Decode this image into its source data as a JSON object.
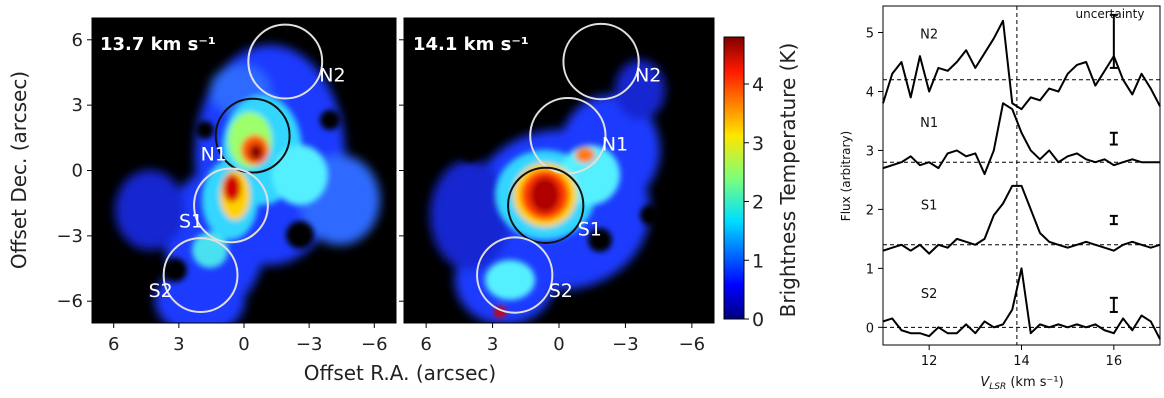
{
  "chart_data": [
    {
      "type": "heatmap",
      "panels": [
        {
          "label": "13.7 km s⁻¹",
          "circles": [
            {
              "name": "N2",
              "ra": -1.9,
              "dec": 5.0,
              "radius": 1.7,
              "color": "#e0e0e0"
            },
            {
              "name": "N1",
              "ra": -0.4,
              "dec": 1.6,
              "radius": 1.7,
              "color": "#111111"
            },
            {
              "name": "S1",
              "ra": 0.6,
              "dec": -1.6,
              "radius": 1.7,
              "color": "#e0e0e0"
            },
            {
              "name": "S2",
              "ra": 2.0,
              "dec": -4.8,
              "radius": 1.7,
              "color": "#e0e0e0"
            }
          ]
        },
        {
          "label": "14.1 km s⁻¹",
          "circles": [
            {
              "name": "N2",
              "ra": -1.9,
              "dec": 5.0,
              "radius": 1.7,
              "color": "#e0e0e0"
            },
            {
              "name": "N1",
              "ra": -0.4,
              "dec": 1.6,
              "radius": 1.7,
              "color": "#e0e0e0"
            },
            {
              "name": "S1",
              "ra": 0.6,
              "dec": -1.6,
              "radius": 1.7,
              "color": "#111111"
            },
            {
              "name": "S2",
              "ra": 2.0,
              "dec": -4.8,
              "radius": 1.7,
              "color": "#e0e0e0"
            }
          ]
        }
      ],
      "xlabel": "Offset R.A. (arcsec)",
      "ylabel": "Offset Dec. (arcsec)",
      "xlim": [
        7,
        -7
      ],
      "ylim": [
        -7,
        7
      ],
      "xticks": [
        6,
        3,
        0,
        -3,
        -6
      ],
      "yticks": [
        6,
        3,
        0,
        -3,
        -6
      ],
      "xtick_labels": [
        "6",
        "3",
        "0",
        "−3",
        "−6"
      ],
      "ytick_labels": [
        "6",
        "3",
        "0",
        "−3",
        "−6"
      ],
      "colorbar": {
        "label": "Brightness Temperature (K)",
        "range": [
          0,
          4.8
        ],
        "ticks": [
          0,
          1,
          2,
          3,
          4
        ],
        "tick_labels": [
          "0",
          "1",
          "2",
          "3",
          "4"
        ],
        "colormap": "jet"
      }
    },
    {
      "type": "line",
      "xlabel": "V",
      "xlabel_sub": "LSR",
      "xlabel_unit": " (km s⁻¹)",
      "ylabel": "Flux (arbitrary)",
      "xlim": [
        11,
        17
      ],
      "ylim": [
        -0.3,
        5.45
      ],
      "xticks": [
        12,
        14,
        16
      ],
      "yticks": [
        0,
        1,
        2,
        3,
        4,
        5
      ],
      "vline": 13.9,
      "annotation": "uncertainty",
      "x": [
        11.0,
        11.2,
        11.4,
        11.6,
        11.8,
        12.0,
        12.2,
        12.4,
        12.6,
        12.8,
        13.0,
        13.2,
        13.4,
        13.6,
        13.8,
        14.0,
        14.2,
        14.4,
        14.6,
        14.8,
        15.0,
        15.2,
        15.4,
        15.6,
        15.8,
        16.0,
        16.2,
        16.4,
        16.6,
        16.8,
        17.0
      ],
      "series": [
        {
          "name": "N2",
          "baseline": 4.2,
          "error_x": 16.0,
          "error_half": 0.45,
          "label_x": 12.0,
          "label_y": 4.9,
          "values": [
            3.8,
            4.3,
            4.5,
            3.9,
            4.6,
            4.0,
            4.4,
            4.35,
            4.5,
            4.7,
            4.4,
            4.65,
            4.9,
            5.2,
            3.8,
            3.7,
            3.9,
            3.85,
            4.05,
            4.0,
            4.3,
            4.45,
            4.5,
            4.1,
            4.35,
            4.6,
            4.2,
            3.95,
            4.3,
            4.05,
            3.75
          ]
        },
        {
          "name": "N1",
          "baseline": 2.8,
          "error_x": 16.0,
          "error_half": 0.1,
          "label_x": 12.0,
          "label_y": 3.4,
          "values": [
            2.7,
            2.75,
            2.8,
            2.9,
            2.75,
            2.8,
            2.7,
            2.95,
            3.0,
            2.9,
            2.95,
            2.6,
            3.0,
            3.8,
            3.7,
            3.3,
            3.0,
            2.85,
            3.0,
            2.8,
            2.9,
            2.95,
            2.85,
            2.8,
            2.85,
            2.75,
            2.8,
            2.85,
            2.8,
            2.8,
            2.8
          ]
        },
        {
          "name": "S1",
          "baseline": 1.4,
          "error_x": 16.0,
          "error_half": 0.07,
          "label_x": 12.0,
          "label_y": 2.0,
          "values": [
            1.3,
            1.35,
            1.4,
            1.3,
            1.4,
            1.25,
            1.4,
            1.35,
            1.5,
            1.45,
            1.4,
            1.5,
            1.9,
            2.1,
            2.4,
            2.4,
            2.0,
            1.6,
            1.45,
            1.4,
            1.35,
            1.4,
            1.45,
            1.4,
            1.35,
            1.3,
            1.4,
            1.45,
            1.4,
            1.35,
            1.4
          ]
        },
        {
          "name": "S2",
          "baseline": 0.0,
          "error_x": 16.0,
          "error_half": 0.12,
          "label_x": 12.0,
          "label_y": 0.5,
          "values": [
            0.1,
            0.15,
            -0.05,
            -0.1,
            -0.1,
            -0.15,
            0.0,
            -0.1,
            -0.1,
            0.05,
            -0.1,
            0.1,
            0.0,
            0.05,
            0.3,
            1.0,
            -0.1,
            0.05,
            0.0,
            0.05,
            0.0,
            0.05,
            0.0,
            0.05,
            -0.05,
            -0.1,
            0.15,
            -0.05,
            0.2,
            0.1,
            -0.2
          ]
        }
      ]
    }
  ]
}
